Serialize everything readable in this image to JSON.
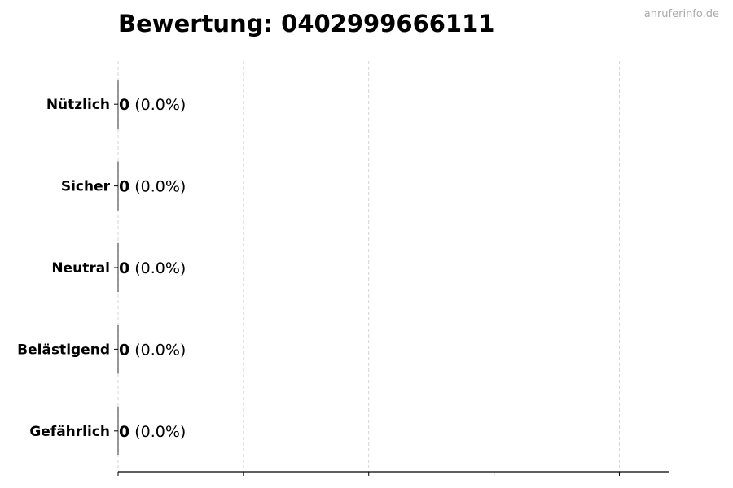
{
  "chart_data": {
    "type": "bar",
    "orientation": "horizontal",
    "title": "Bewertung: 0402999666111",
    "xlabel": "",
    "ylabel": "",
    "categories": [
      "Nützlich",
      "Sicher",
      "Neutral",
      "Belästigend",
      "Gefährlich"
    ],
    "values": [
      0,
      0,
      0,
      0,
      0
    ],
    "value_labels": [
      "0",
      "0",
      "0",
      "0",
      "0"
    ],
    "percent_labels": [
      "(0.0%)",
      "(0.0%)",
      "(0.0%)",
      "(0.0%)",
      "(0.0%)"
    ],
    "xlim": [
      0,
      4.4
    ],
    "xticks": [
      0,
      1,
      2,
      3,
      4
    ],
    "xtick_labels_shown": false,
    "grid": "vertical dashed",
    "colors": {
      "bar_edge": "#000000",
      "grid": "#cccccc",
      "watermark": "#aaaaaa"
    }
  },
  "watermark": "anruferinfo.de"
}
